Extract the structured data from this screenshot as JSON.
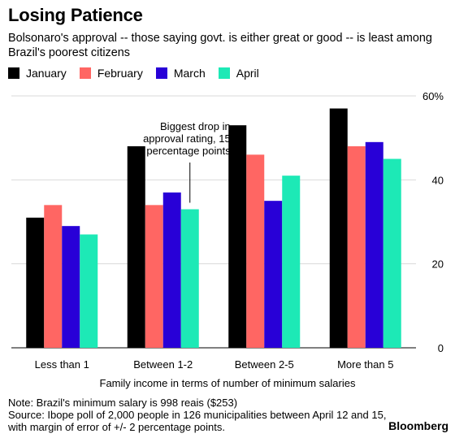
{
  "header": {
    "title": "Losing Patience",
    "subtitle": "Bolsonaro's approval -- those saying govt. is either great or good -- is least among Brazil's poorest citizens"
  },
  "footer": {
    "note": "Note: Brazil's minimum salary is 998 reais ($253)",
    "source": "Source: Ibope poll of 2,000 people in 126 municipalities between April 12 and 15, with margin of error of +/- 2 percentage points.",
    "brand": "Bloomberg"
  },
  "chart_data": {
    "type": "bar",
    "title": "Losing Patience",
    "xlabel": "Family income in terms of number of minimum salaries",
    "ylabel": "",
    "categories": [
      "Less than 1",
      "Between 1-2",
      "Between 2-5",
      "More than 5"
    ],
    "series": [
      {
        "name": "January",
        "color": "#000000",
        "values": [
          31,
          48,
          53,
          57
        ]
      },
      {
        "name": "February",
        "color": "#ff6663",
        "values": [
          34,
          34,
          46,
          48
        ]
      },
      {
        "name": "March",
        "color": "#2800d7",
        "values": [
          29,
          37,
          35,
          49
        ]
      },
      {
        "name": "April",
        "color": "#1de9b6",
        "values": [
          27,
          33,
          41,
          45
        ]
      }
    ],
    "ylim": [
      0,
      60
    ],
    "yticks": [
      {
        "value": 0,
        "label": "0"
      },
      {
        "value": 20,
        "label": "20"
      },
      {
        "value": 40,
        "label": "40"
      },
      {
        "value": 60,
        "label": "60%"
      }
    ],
    "grid": "horizontal",
    "legend_position": "top-left",
    "annotation": {
      "category": "Between 1-2",
      "series": "April",
      "lines": [
        "Biggest drop in",
        "approval rating, 15",
        "percentage points"
      ]
    }
  }
}
